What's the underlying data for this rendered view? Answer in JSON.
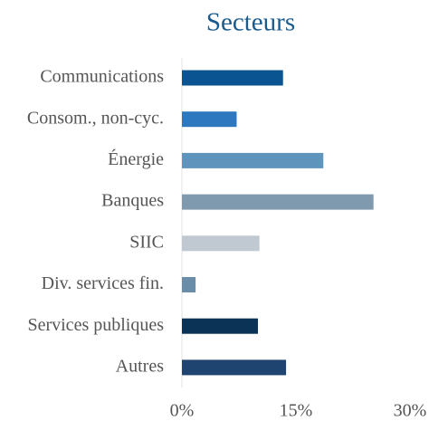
{
  "chart_data": {
    "type": "bar",
    "orientation": "horizontal",
    "title": "Secteurs",
    "categories": [
      "Communications",
      "Consom., non-cyc.",
      "Énergie",
      "Banques",
      "SIIC",
      "Div. services fin.",
      "Services publiques",
      "Autres"
    ],
    "values": [
      13.3,
      7.2,
      18.6,
      25.2,
      10.2,
      1.8,
      10.0,
      13.7
    ],
    "colors": [
      "#0a5591",
      "#2e78c0",
      "#5f94bd",
      "#7f9aaf",
      "#c0c9d1",
      "#6a8eaa",
      "#0b3355",
      "#1f4470"
    ],
    "xlim": [
      0,
      30
    ],
    "xticks": [
      {
        "value": 0,
        "label": "0%"
      },
      {
        "value": 15,
        "label": "15%"
      },
      {
        "value": 30,
        "label": "30%"
      }
    ]
  }
}
